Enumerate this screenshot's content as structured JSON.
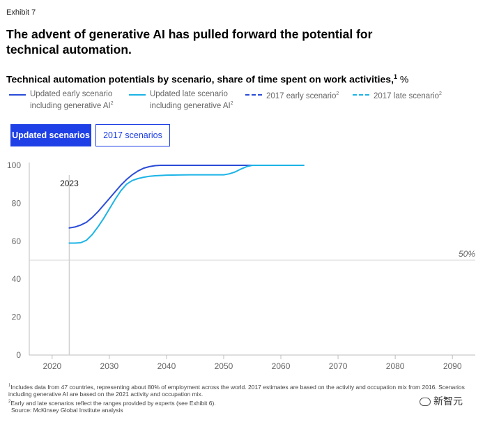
{
  "exhibit": "Exhibit 7",
  "headline": "The advent of generative AI has pulled forward the potential for technical automation.",
  "subtitle": {
    "text": "Technical automation potentials by scenario, share of time spent on work activities,",
    "sup": "1",
    "unit": "%"
  },
  "legend": [
    {
      "line1": "Updated early scenario",
      "line2": "including generative AI",
      "sup": "2",
      "color": "#2a4bd7",
      "dashed": false
    },
    {
      "line1": "Updated late scenario",
      "line2": "including generative AI",
      "sup": "2",
      "color": "#1cb4e6",
      "dashed": false
    },
    {
      "line1": "2017 early scenario",
      "line2": "",
      "sup": "2",
      "color": "#2a4bd7",
      "dashed": true
    },
    {
      "line1": "2017 late scenario",
      "line2": "",
      "sup": "2",
      "color": "#1cb4e6",
      "dashed": true
    }
  ],
  "tabs": {
    "active": "Updated scenarios",
    "inactive": "2017 scenarios"
  },
  "chart_data": {
    "type": "line",
    "xlim": [
      2016,
      2094
    ],
    "ylim": [
      0,
      100
    ],
    "x_ticks": [
      2020,
      2030,
      2040,
      2050,
      2060,
      2070,
      2080,
      2090
    ],
    "y_ticks": [
      0,
      20,
      40,
      60,
      80,
      100
    ],
    "grid": false,
    "legend_position": "top",
    "reference_line": {
      "y": 50,
      "label": "50%"
    },
    "marker": {
      "x": 2023,
      "label": "2023"
    },
    "series": [
      {
        "name": "Updated early scenario including generative AI",
        "color": "#2a4bd7",
        "points": [
          [
            2023,
            67
          ],
          [
            2024,
            67.5
          ],
          [
            2025,
            68.5
          ],
          [
            2026,
            70
          ],
          [
            2027,
            72.5
          ],
          [
            2028,
            75.5
          ],
          [
            2029,
            79
          ],
          [
            2030,
            82.5
          ],
          [
            2031,
            86
          ],
          [
            2032,
            89.5
          ],
          [
            2033,
            92.5
          ],
          [
            2034,
            95
          ],
          [
            2035,
            97
          ],
          [
            2036,
            98.5
          ],
          [
            2037,
            99.3
          ],
          [
            2038,
            99.8
          ],
          [
            2039,
            100
          ],
          [
            2064,
            100
          ]
        ]
      },
      {
        "name": "Updated late scenario including generative AI",
        "color": "#1cb4e6",
        "points": [
          [
            2023,
            59
          ],
          [
            2024,
            59
          ],
          [
            2025,
            59.2
          ],
          [
            2026,
            60.5
          ],
          [
            2027,
            63.5
          ],
          [
            2028,
            67.5
          ],
          [
            2029,
            72
          ],
          [
            2030,
            77
          ],
          [
            2031,
            82
          ],
          [
            2032,
            86.5
          ],
          [
            2033,
            90
          ],
          [
            2034,
            92
          ],
          [
            2035,
            93
          ],
          [
            2036,
            93.7
          ],
          [
            2037,
            94.2
          ],
          [
            2038,
            94.5
          ],
          [
            2040,
            94.8
          ],
          [
            2044,
            95
          ],
          [
            2049,
            95
          ],
          [
            2050,
            95
          ],
          [
            2051,
            95.5
          ],
          [
            2052,
            96.5
          ],
          [
            2053,
            98
          ],
          [
            2054,
            99.3
          ],
          [
            2055,
            100
          ],
          [
            2064,
            100
          ]
        ]
      }
    ]
  },
  "footnotes": [
    {
      "sup": "1",
      "text": "Includes data from 47 countries, representing about 80% of employment across the world. 2017 estimates are based on the activity and occupation mix from 2016. Scenarios including generative AI are based on the 2021 activity and occupation mix."
    },
    {
      "sup": "2",
      "text": "Early and late scenarios reflect the ranges provided by experts (see Exhibit 6)."
    },
    {
      "sup": "",
      "text": "Source: McKinsey Global Institute analysis"
    }
  ],
  "watermark": "新智元"
}
